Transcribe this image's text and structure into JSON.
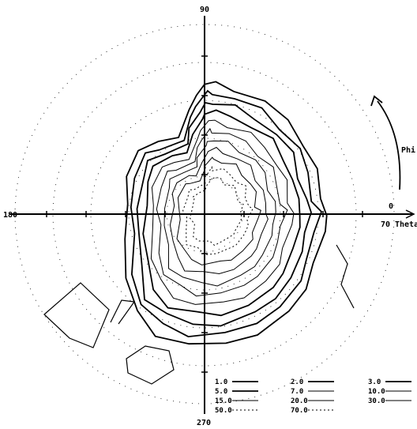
{
  "chart_data": {
    "type": "contour",
    "axis_labels": {
      "top": "90",
      "left": "180",
      "right_zero": "0",
      "bottom": "270",
      "theta_max": "70",
      "theta_label": "Theta",
      "phi_label": "Phi"
    },
    "legend": [
      {
        "label": "1.0"
      },
      {
        "label": "2.0"
      },
      {
        "label": "3.0"
      },
      {
        "label": "5.0"
      },
      {
        "label": "7.0"
      },
      {
        "label": "10.0"
      },
      {
        "label": "15.0"
      },
      {
        "label": "20.0"
      },
      {
        "label": "30.0"
      },
      {
        "label": "50.0"
      },
      {
        "label": "70.0"
      }
    ],
    "contour_levels": [
      1.0,
      2.0,
      3.0,
      5.0,
      7.0,
      10.0,
      15.0,
      20.0,
      30.0,
      50.0,
      70.0
    ],
    "theta_range": [
      0,
      70
    ],
    "phi_range": [
      0,
      360
    ],
    "grid": true,
    "legend_position": "bottom-right"
  }
}
